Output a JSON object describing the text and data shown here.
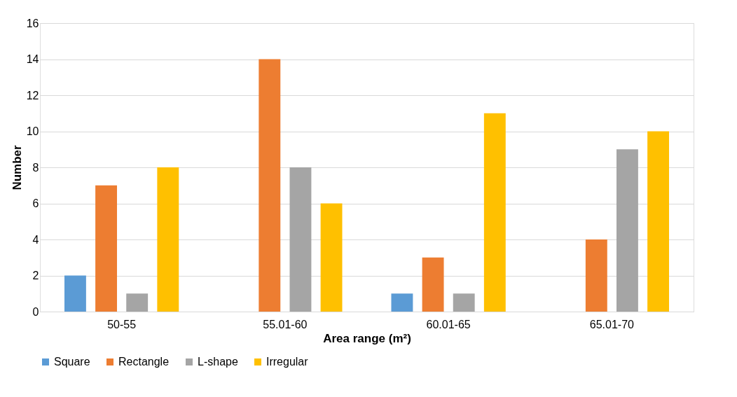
{
  "chart_data": {
    "type": "bar",
    "xlabel": "Area range (m²)",
    "ylabel": "Number",
    "categories": [
      "50-55",
      "55.01-60",
      "60.01-65",
      "65.01-70"
    ],
    "series": [
      {
        "name": "Square",
        "color": "#5b9bd5",
        "values": [
          2,
          0,
          1,
          0
        ]
      },
      {
        "name": "Rectangle",
        "color": "#ed7d31",
        "values": [
          7,
          14,
          3,
          4
        ]
      },
      {
        "name": "L-shape",
        "color": "#a5a5a5",
        "values": [
          1,
          8,
          1,
          9
        ]
      },
      {
        "name": "Irregular",
        "color": "#ffc000",
        "values": [
          8,
          6,
          11,
          10
        ]
      }
    ],
    "ylim": [
      0,
      16
    ],
    "yticks": [
      0,
      2,
      4,
      6,
      8,
      10,
      12,
      14,
      16
    ],
    "grid": "y",
    "legend": "bottom"
  }
}
